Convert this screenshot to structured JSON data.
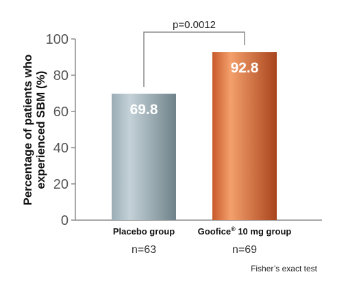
{
  "chart_data": {
    "type": "bar",
    "categories": [
      "Placebo group",
      "Goofice® 10 mg group"
    ],
    "category_parts": [
      {
        "main": "Placebo group",
        "sup": "",
        "tail": ""
      },
      {
        "main": "Goofice",
        "sup": "®",
        "tail": " 10 mg group"
      }
    ],
    "sample_sizes": [
      "n=63",
      "n=69"
    ],
    "values": [
      69.8,
      92.8
    ],
    "value_labels": [
      "69.8",
      "92.8"
    ],
    "ylabel_lines": [
      "Percentage of patients who",
      "experienced SBM (%)"
    ],
    "ylim": [
      0,
      100
    ],
    "yticks": [
      0,
      20,
      40,
      60,
      80,
      100
    ],
    "grid": false,
    "annotation": "p=0.0012",
    "footnote": "Fisher’s exact test",
    "colors": {
      "placebo": [
        "#9aacb4",
        "#c4d2d8",
        "#6f8289"
      ],
      "goofice": [
        "#c7582a",
        "#f4a06c",
        "#a8441c"
      ]
    }
  }
}
